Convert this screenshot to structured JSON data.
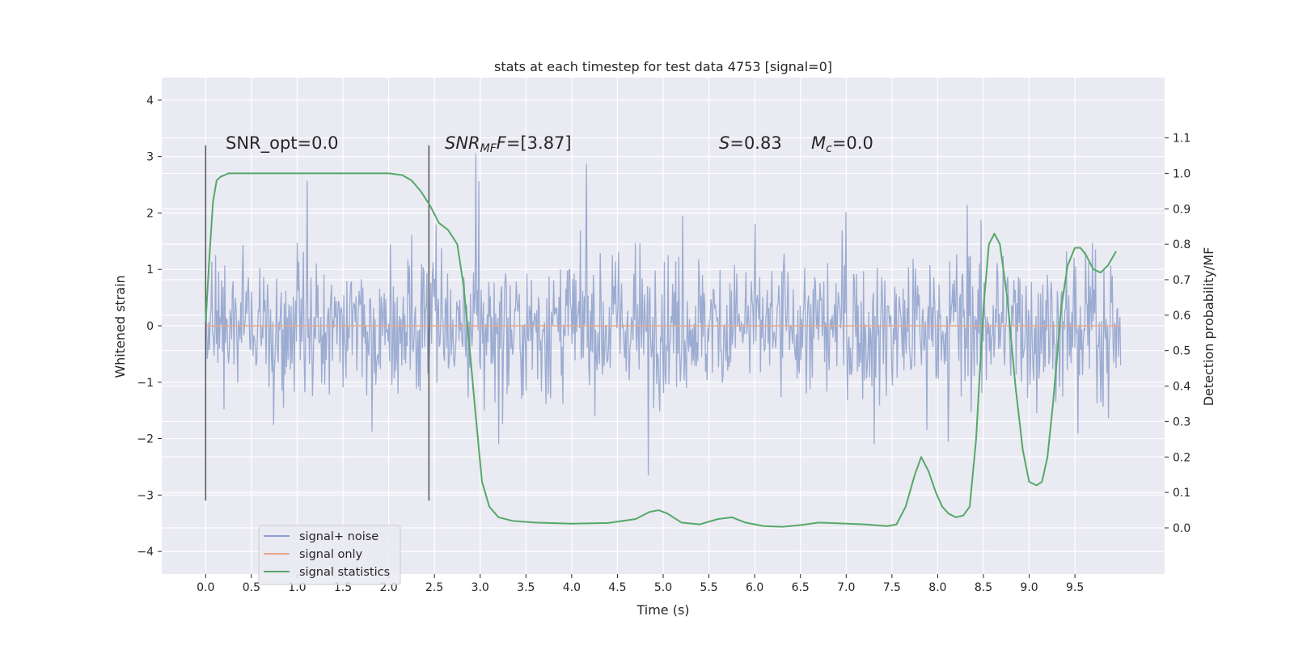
{
  "chart_data": {
    "type": "line",
    "title": "stats at each timestep for test data 4753 [signal=0]",
    "xlabel": "Time (s)",
    "ylabel": "Whitened strain",
    "y2label": "Detection probability/MF",
    "xlim": [
      -0.48,
      10.48
    ],
    "ylim": [
      -4.4,
      4.4
    ],
    "y2lim": [
      -0.13,
      1.27
    ],
    "xticks": [
      0.0,
      0.5,
      1.0,
      1.5,
      2.0,
      2.5,
      3.0,
      3.5,
      4.0,
      4.5,
      5.0,
      5.5,
      6.0,
      6.5,
      7.0,
      7.5,
      8.0,
      8.5,
      9.0,
      9.5
    ],
    "xtick_labels": [
      "0.0",
      "0.5",
      "1.0",
      "1.5",
      "2.0",
      "2.5",
      "3.0",
      "3.5",
      "4.0",
      "4.5",
      "5.0",
      "5.5",
      "6.0",
      "6.5",
      "7.0",
      "7.5",
      "8.0",
      "8.5",
      "9.0",
      "9.5"
    ],
    "yticks": [
      -4,
      -3,
      -2,
      -1,
      0,
      1,
      2,
      3,
      4
    ],
    "ytick_labels": [
      "−4",
      "−3",
      "−2",
      "−1",
      "0",
      "1",
      "2",
      "3",
      "4"
    ],
    "y2ticks": [
      0.0,
      0.1,
      0.2,
      0.3,
      0.4,
      0.5,
      0.6,
      0.7,
      0.8,
      0.9,
      1.0,
      1.1
    ],
    "y2tick_labels": [
      "0.0",
      "0.1",
      "0.2",
      "0.3",
      "0.4",
      "0.5",
      "0.6",
      "0.7",
      "0.8",
      "0.9",
      "1.0",
      "1.1"
    ],
    "grid": true,
    "legend_position": "lower-left",
    "annotations": {
      "snr_opt": "SNR_opt=0.0",
      "snr_mf_base": "SNR",
      "snr_mf_sub": "MF",
      "snr_mf_value": "=[3.87]",
      "s_sym": "S",
      "s_value": "=0.83",
      "mc_sym": "M",
      "mc_sub": "c",
      "mc_value": "=0.0"
    },
    "vlines": [
      {
        "x": 0.0,
        "ymin": -3.1,
        "ymax": 3.2
      },
      {
        "x": 2.44,
        "ymin": -3.1,
        "ymax": 3.2
      }
    ],
    "series": [
      {
        "name": "signal+ noise",
        "axis": "left",
        "color": "#8da0cb",
        "x_range": [
          0.0,
          10.0
        ],
        "sample_count": 1200,
        "typical_range": [
          -1.8,
          1.6
        ]
      },
      {
        "name": "signal only",
        "axis": "left",
        "color": "#e8a98c",
        "x": [
          0.0,
          10.0
        ],
        "y": [
          0.0,
          0.0
        ]
      },
      {
        "name": "signal statistics",
        "axis": "right",
        "color": "#55a868",
        "x": [
          0.0,
          0.04,
          0.08,
          0.12,
          0.16,
          0.25,
          0.5,
          1.0,
          1.5,
          2.0,
          2.15,
          2.25,
          2.35,
          2.45,
          2.55,
          2.65,
          2.75,
          2.82,
          2.88,
          2.95,
          3.02,
          3.1,
          3.2,
          3.35,
          3.6,
          4.0,
          4.4,
          4.7,
          4.85,
          4.95,
          5.05,
          5.2,
          5.4,
          5.6,
          5.75,
          5.9,
          6.1,
          6.3,
          6.5,
          6.7,
          6.9,
          7.2,
          7.45,
          7.55,
          7.65,
          7.75,
          7.82,
          7.9,
          7.98,
          8.05,
          8.12,
          8.2,
          8.28,
          8.35,
          8.42,
          8.5,
          8.56,
          8.62,
          8.68,
          8.76,
          8.85,
          8.93,
          9.0,
          9.08,
          9.14,
          9.2,
          9.26,
          9.35,
          9.42,
          9.5,
          9.56,
          9.62,
          9.7,
          9.78,
          9.86,
          9.95
        ],
        "y": [
          0.58,
          0.76,
          0.92,
          0.98,
          0.99,
          1.0,
          1.0,
          1.0,
          1.0,
          1.0,
          0.995,
          0.98,
          0.95,
          0.91,
          0.86,
          0.84,
          0.8,
          0.68,
          0.52,
          0.32,
          0.13,
          0.06,
          0.03,
          0.02,
          0.015,
          0.012,
          0.014,
          0.025,
          0.045,
          0.05,
          0.04,
          0.015,
          0.01,
          0.025,
          0.03,
          0.015,
          0.005,
          0.003,
          0.008,
          0.015,
          0.013,
          0.01,
          0.005,
          0.01,
          0.06,
          0.15,
          0.2,
          0.16,
          0.1,
          0.06,
          0.04,
          0.03,
          0.035,
          0.06,
          0.25,
          0.62,
          0.8,
          0.83,
          0.8,
          0.65,
          0.4,
          0.22,
          0.13,
          0.12,
          0.13,
          0.2,
          0.35,
          0.62,
          0.74,
          0.79,
          0.79,
          0.77,
          0.73,
          0.72,
          0.74,
          0.78
        ]
      }
    ]
  }
}
